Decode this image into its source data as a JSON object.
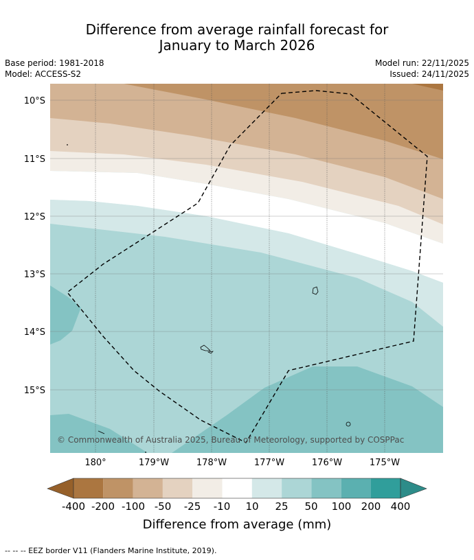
{
  "title": {
    "line1": "Difference from average rainfall forecast for",
    "line2": "January to March 2026"
  },
  "meta": {
    "base_period": "Base period: 1981-2018",
    "model": "Model: ACCESS-S2",
    "model_run": "Model run: 22/11/2025",
    "issued": "Issued: 24/11/2025"
  },
  "map": {
    "lat_labels": [
      "10°S",
      "11°S",
      "12°S",
      "13°S",
      "14°S",
      "15°S"
    ],
    "lon_labels": [
      "180°",
      "179°W",
      "178°W",
      "177°W",
      "176°W",
      "175°W"
    ],
    "copyright": "© Commonwealth of Australia 2025, Bureau of Meteorology, supported by COSPPac"
  },
  "legend": {
    "bins": [
      "-400",
      "-200",
      "-100",
      "-50",
      "-25",
      "-10",
      "10",
      "25",
      "50",
      "100",
      "200",
      "400"
    ],
    "title": "Difference from average (mm)"
  },
  "colors": {
    "below_extend": "#96602a",
    "c1": "#ab7640",
    "c2": "#bf9366",
    "c3": "#d3b394",
    "c4": "#e4d2c0",
    "c5": "#f2ede6",
    "c6": "#ffffff",
    "c7": "#d4e8e8",
    "c8": "#acd6d6",
    "c9": "#84c3c3",
    "c10": "#5bb0b0",
    "c11": "#309e9b",
    "above_extend": "#2d8c89"
  },
  "footer": {
    "text": "--  --  -- EEZ border V11 (Flanders Marine Institute, 2019)."
  }
}
